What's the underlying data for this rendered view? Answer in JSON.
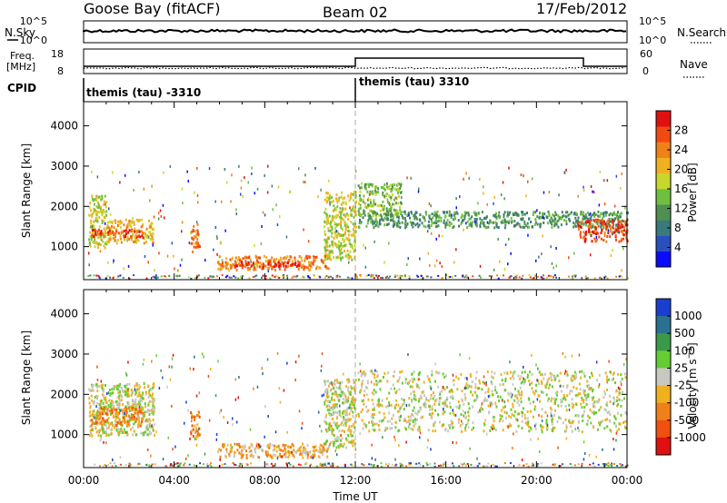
{
  "header": {
    "station": "Goose Bay (fitACF)",
    "beam": "Beam 02",
    "date": "17/Feb/2012"
  },
  "top_panels": {
    "nsky_label": "N.Sky",
    "nsky_ticks": [
      "10^5",
      "10^0"
    ],
    "nsearch_label": "N.Search",
    "nsearch_ticks": [
      "10^5",
      "10^0"
    ],
    "freq_label_1": "Freq.",
    "freq_label_2": "[MHz]",
    "freq_ticks": [
      "18",
      "8"
    ],
    "nave_label": "Nave",
    "nave_ticks": [
      "60",
      "0"
    ],
    "cpid_label": "CPID",
    "cpid_segments": [
      {
        "label": "themis (tau) -3310",
        "start_hour": 0,
        "end_hour": 12
      },
      {
        "label": "themis (tau) 3310",
        "start_hour": 12,
        "end_hour": 24
      }
    ]
  },
  "chart_data": [
    {
      "type": "heatmap",
      "name": "power-panel",
      "ylabel": "Slant Range [km]",
      "ylim": [
        180,
        4600
      ],
      "yticks": [
        1000,
        2000,
        3000,
        4000
      ],
      "xlim": [
        0,
        24
      ],
      "colorbar": {
        "label": "Power [dB]",
        "ticks": [
          "4",
          "8",
          "12",
          "16",
          "20",
          "24",
          "28"
        ],
        "colors": [
          "#0a0aff",
          "#2a4fbf",
          "#3a7a7a",
          "#4f8f4f",
          "#6fbf3f",
          "#c8d82a",
          "#f0b020",
          "#f08018",
          "#f04a10",
          "#e01010"
        ]
      },
      "echo_regions": [
        {
          "t0": 0.2,
          "t1": 1.0,
          "r0": 1000,
          "r1": 2300,
          "level": 5
        },
        {
          "t0": 1.0,
          "t1": 3.1,
          "r0": 1100,
          "r1": 1700,
          "level": 6
        },
        {
          "t0": 0.3,
          "t1": 2.6,
          "r0": 1250,
          "r1": 1450,
          "level": 8
        },
        {
          "t0": 4.7,
          "t1": 5.1,
          "r0": 900,
          "r1": 1600,
          "level": 7
        },
        {
          "t0": 5.9,
          "t1": 10.8,
          "r0": 450,
          "r1": 800,
          "level": 7
        },
        {
          "t0": 6.5,
          "t1": 9.5,
          "r0": 520,
          "r1": 650,
          "level": 9
        },
        {
          "t0": 10.6,
          "t1": 12.0,
          "r0": 700,
          "r1": 2400,
          "level": 5
        },
        {
          "t0": 12.1,
          "t1": 24.0,
          "r0": 1500,
          "r1": 1900,
          "level": 3
        },
        {
          "t0": 12.1,
          "t1": 14.0,
          "r0": 1800,
          "r1": 2600,
          "level": 4
        },
        {
          "t0": 21.8,
          "t1": 24.0,
          "r0": 1150,
          "r1": 1700,
          "level": 8
        }
      ]
    },
    {
      "type": "heatmap",
      "name": "velocity-panel",
      "ylabel": "Slant Range [km]",
      "ylim": [
        180,
        4600
      ],
      "yticks": [
        1000,
        2000,
        3000,
        4000
      ],
      "xlim": [
        0,
        24
      ],
      "xticks": [
        "00:00",
        "04:00",
        "08:00",
        "12:00",
        "16:00",
        "20:00",
        "00:00"
      ],
      "xlabel": "Time UT",
      "colorbar": {
        "label": "Velocity [m s^-1]",
        "ticks": [
          "1000",
          "500",
          "100",
          "25",
          "-25",
          "-100",
          "-500",
          "-1000"
        ],
        "colors": [
          "#1a3fd0",
          "#2a7090",
          "#3a9a4a",
          "#66cc33",
          "#c8c8c0",
          "#f0b020",
          "#f08018",
          "#f05010",
          "#e01010"
        ]
      },
      "echo_regions": [
        {
          "t0": 0.2,
          "t1": 3.1,
          "r0": 1000,
          "r1": 2300,
          "level": 4
        },
        {
          "t0": 0.3,
          "t1": 2.6,
          "r0": 1250,
          "r1": 1700,
          "level": 6
        },
        {
          "t0": 4.7,
          "t1": 5.1,
          "r0": 900,
          "r1": 1600,
          "level": 6
        },
        {
          "t0": 5.9,
          "t1": 10.8,
          "r0": 450,
          "r1": 800,
          "level": 5
        },
        {
          "t0": 10.6,
          "t1": 12.0,
          "r0": 700,
          "r1": 2400,
          "level": 4
        },
        {
          "t0": 12.1,
          "t1": 24.0,
          "r0": 1100,
          "r1": 2600,
          "level": 4
        }
      ]
    }
  ]
}
